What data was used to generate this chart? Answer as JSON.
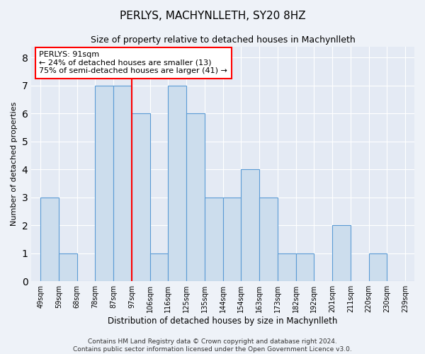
{
  "title": "PERLYS, MACHYNLLETH, SY20 8HZ",
  "subtitle": "Size of property relative to detached houses in Machynlleth",
  "xlabel": "Distribution of detached houses by size in Machynlleth",
  "ylabel": "Number of detached properties",
  "categories": [
    "49sqm",
    "59sqm",
    "68sqm",
    "78sqm",
    "87sqm",
    "97sqm",
    "106sqm",
    "116sqm",
    "125sqm",
    "135sqm",
    "144sqm",
    "154sqm",
    "163sqm",
    "173sqm",
    "182sqm",
    "192sqm",
    "201sqm",
    "211sqm",
    "220sqm",
    "230sqm",
    "239sqm"
  ],
  "bar_values": [
    3,
    1,
    0,
    7,
    7,
    6,
    1,
    7,
    6,
    3,
    3,
    4,
    3,
    1,
    1,
    0,
    2,
    0,
    1,
    0,
    0
  ],
  "bar_color": "#ccdded",
  "bar_edge_color": "#5b9bd5",
  "annotation_text": "PERLYS: 91sqm\n← 24% of detached houses are smaller (13)\n75% of semi-detached houses are larger (41) →",
  "annotation_box_color": "white",
  "annotation_box_edge": "red",
  "property_line_x": 4,
  "ylim": [
    0,
    8.4
  ],
  "yticks": [
    0,
    1,
    2,
    3,
    4,
    5,
    6,
    7,
    8
  ],
  "footer": "Contains HM Land Registry data © Crown copyright and database right 2024.\nContains public sector information licensed under the Open Government Licence v3.0.",
  "bg_color": "#eef2f8",
  "plot_bg_color": "#e4eaf4",
  "grid_color": "white",
  "title_fontsize": 11,
  "subtitle_fontsize": 9,
  "xlabel_fontsize": 8.5,
  "ylabel_fontsize": 8,
  "tick_fontsize": 7,
  "footer_fontsize": 6.5
}
